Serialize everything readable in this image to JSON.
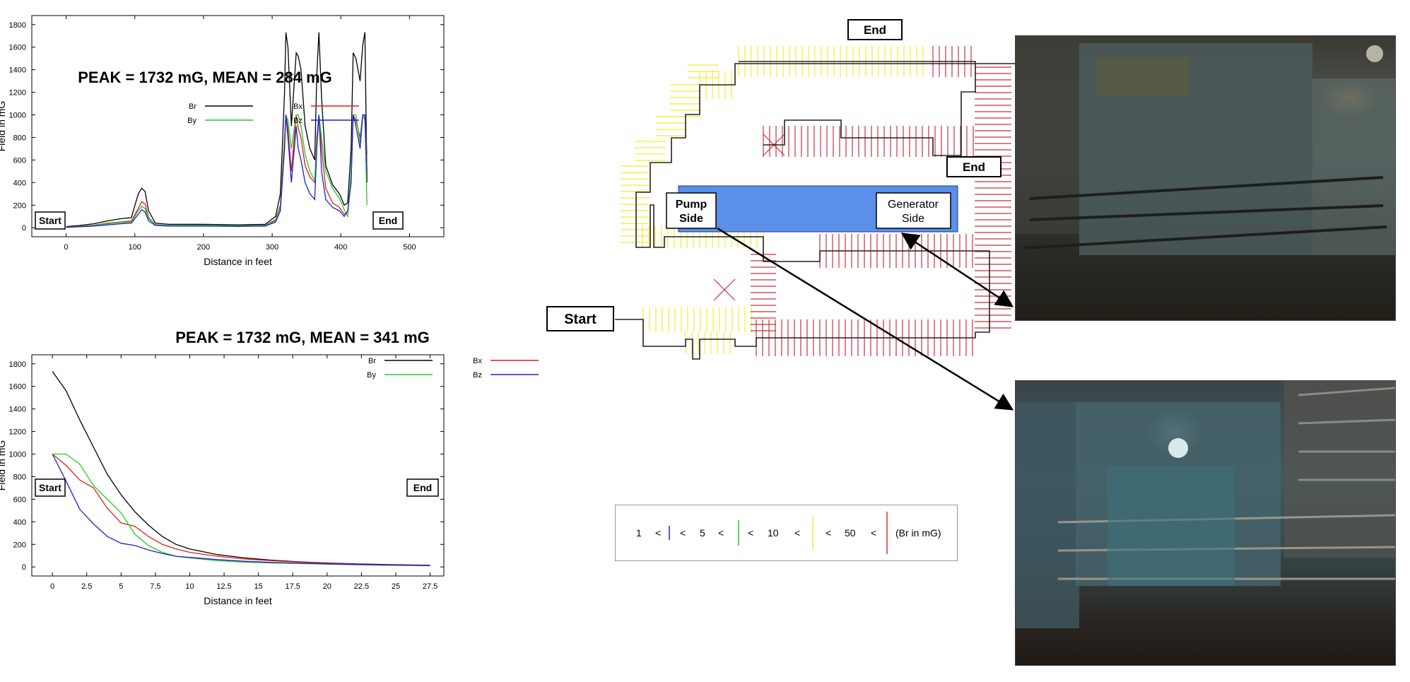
{
  "chart_data": [
    {
      "type": "line",
      "annotation": "PEAK = 1732 mG, MEAN = 284 mG",
      "xlabel": "Distance in feet",
      "ylabel": "Field in mG",
      "xlim": [
        -50,
        550
      ],
      "ylim": [
        -80,
        1880
      ],
      "xticks": [
        0,
        100,
        200,
        300,
        400,
        500
      ],
      "yticks": [
        0,
        200,
        400,
        600,
        800,
        1000,
        1200,
        1400,
        1600,
        1800
      ],
      "grid": false,
      "legend_placement": "upper-center",
      "markers": {
        "start": "Start",
        "end": "End"
      },
      "series": [
        {
          "name": "Br",
          "color": "#000000",
          "x": [
            0,
            20,
            40,
            60,
            80,
            95,
            105,
            110,
            115,
            120,
            130,
            150,
            200,
            250,
            290,
            305,
            312,
            318,
            320,
            323,
            328,
            335,
            338,
            342,
            348,
            355,
            362,
            365,
            368,
            372,
            378,
            388,
            398,
            405,
            410,
            415,
            418,
            422,
            428,
            432,
            435,
            438
          ],
          "y": [
            10,
            20,
            35,
            60,
            80,
            90,
            300,
            350,
            320,
            150,
            40,
            30,
            30,
            25,
            30,
            100,
            300,
            1200,
            1730,
            1600,
            900,
            1550,
            1520,
            1400,
            900,
            700,
            600,
            1350,
            1732,
            1150,
            550,
            380,
            300,
            200,
            220,
            700,
            1550,
            1500,
            1300,
            1620,
            1732,
            400
          ]
        },
        {
          "name": "Bx",
          "color": "#dd2020",
          "x": [
            0,
            20,
            40,
            60,
            80,
            95,
            105,
            110,
            115,
            120,
            130,
            150,
            200,
            250,
            290,
            305,
            312,
            318,
            320,
            323,
            328,
            335,
            338,
            342,
            348,
            355,
            362,
            365,
            368,
            372,
            378,
            388,
            398,
            405,
            410,
            415,
            418,
            422,
            428,
            432,
            435,
            438
          ],
          "y": [
            5,
            12,
            22,
            40,
            50,
            60,
            170,
            230,
            210,
            90,
            28,
            20,
            20,
            18,
            22,
            70,
            200,
            800,
            1000,
            880,
            500,
            1000,
            880,
            800,
            550,
            450,
            400,
            800,
            1000,
            700,
            350,
            220,
            180,
            120,
            140,
            450,
            1000,
            950,
            800,
            1000,
            1000,
            650
          ]
        },
        {
          "name": "By",
          "color": "#22cc22",
          "x": [
            0,
            20,
            40,
            60,
            80,
            95,
            105,
            110,
            115,
            120,
            130,
            150,
            200,
            250,
            290,
            305,
            312,
            318,
            320,
            323,
            328,
            335,
            338,
            342,
            348,
            355,
            362,
            365,
            368,
            372,
            378,
            388,
            398,
            405,
            410,
            415,
            418,
            422,
            428,
            432,
            435,
            438
          ],
          "y": [
            5,
            10,
            20,
            35,
            45,
            50,
            150,
            190,
            170,
            80,
            25,
            20,
            22,
            18,
            20,
            60,
            180,
            750,
            1000,
            950,
            700,
            1000,
            1000,
            900,
            650,
            500,
            420,
            750,
            1000,
            800,
            500,
            350,
            260,
            160,
            100,
            500,
            1000,
            1000,
            750,
            1000,
            950,
            200
          ]
        },
        {
          "name": "Bz",
          "color": "#2020cc",
          "x": [
            0,
            20,
            40,
            60,
            80,
            95,
            105,
            110,
            115,
            120,
            130,
            150,
            200,
            250,
            290,
            305,
            312,
            318,
            320,
            323,
            328,
            335,
            338,
            342,
            348,
            355,
            362,
            365,
            368,
            372,
            378,
            388,
            398,
            405,
            410,
            415,
            418,
            422,
            428,
            432,
            435,
            438
          ],
          "y": [
            4,
            8,
            15,
            25,
            35,
            40,
            120,
            160,
            140,
            60,
            20,
            15,
            15,
            12,
            15,
            50,
            150,
            700,
            1000,
            800,
            400,
            900,
            700,
            600,
            400,
            300,
            250,
            700,
            1000,
            500,
            250,
            180,
            150,
            100,
            150,
            400,
            1000,
            900,
            700,
            1000,
            1000,
            500
          ]
        }
      ]
    },
    {
      "type": "line",
      "annotation": "PEAK = 1732 mG, MEAN = 341 mG",
      "xlabel": "Distance in feet",
      "ylabel": "Field in mG",
      "xlim": [
        -1.5,
        28.5
      ],
      "ylim": [
        -80,
        1880
      ],
      "xticks": [
        0,
        2.5,
        5,
        7.5,
        10,
        12.5,
        15,
        17.5,
        20,
        22.5,
        25,
        27.5
      ],
      "yticks": [
        0,
        200,
        400,
        600,
        800,
        1000,
        1200,
        1400,
        1600,
        1800
      ],
      "grid": false,
      "legend_placement": "upper-right",
      "markers": {
        "start": "Start",
        "end": "End"
      },
      "series": [
        {
          "name": "Br",
          "color": "#000000",
          "x": [
            0,
            1,
            2,
            3,
            4,
            5,
            6,
            7,
            8,
            9,
            10,
            12,
            14,
            16,
            18,
            20,
            22,
            24,
            26,
            27.5
          ],
          "y": [
            1732,
            1560,
            1300,
            1060,
            820,
            640,
            490,
            370,
            270,
            200,
            160,
            110,
            80,
            60,
            45,
            35,
            28,
            22,
            18,
            15
          ]
        },
        {
          "name": "Bx",
          "color": "#dd2020",
          "x": [
            0,
            1,
            2,
            3,
            4,
            5,
            6,
            7,
            8,
            9,
            10,
            12,
            14,
            16,
            18,
            20,
            22,
            24,
            26,
            27.5
          ],
          "y": [
            1000,
            900,
            770,
            700,
            520,
            390,
            360,
            270,
            200,
            160,
            130,
            95,
            70,
            55,
            42,
            33,
            26,
            20,
            16,
            14
          ]
        },
        {
          "name": "By",
          "color": "#22cc22",
          "x": [
            0,
            1,
            2,
            3,
            4,
            5,
            6,
            7,
            8,
            9,
            10,
            12,
            14,
            16,
            18,
            20,
            22,
            24,
            26,
            27.5
          ],
          "y": [
            1000,
            1000,
            910,
            720,
            600,
            480,
            290,
            190,
            130,
            95,
            80,
            55,
            42,
            35,
            30,
            25,
            20,
            16,
            13,
            11
          ]
        },
        {
          "name": "Bz",
          "color": "#2020cc",
          "x": [
            0,
            1,
            2,
            3,
            4,
            5,
            6,
            7,
            8,
            9,
            10,
            12,
            14,
            16,
            18,
            20,
            22,
            24,
            26,
            27.5
          ],
          "y": [
            1000,
            760,
            510,
            380,
            270,
            210,
            190,
            150,
            120,
            95,
            85,
            65,
            50,
            40,
            33,
            28,
            22,
            18,
            15,
            13
          ]
        }
      ]
    }
  ],
  "diagram": {
    "labels": {
      "end_top": "End",
      "end_right": "End",
      "start": "Start",
      "pump_side_line1": "Pump",
      "pump_side_line2": "Side",
      "generator_side_line1": "Generator",
      "generator_side_line2": "Side"
    },
    "colors": {
      "pump": "#5b8fe8",
      "low_field": "#f2ec30",
      "high_field": "#c8323c",
      "mid_field": "#22cc22",
      "very_low_field": "#2020cc"
    }
  },
  "legend": {
    "v1": "1",
    "lt1": "<",
    "lt2": "<",
    "v5": "5",
    "lt3": "<",
    "lt4": "<",
    "v10": "10",
    "lt5": "<",
    "lt6": "<",
    "v50": "50",
    "lt7": "<",
    "unit": "(Br in mG)"
  },
  "photos": [
    {
      "subject": "generator-photo"
    },
    {
      "subject": "pump-photo"
    }
  ]
}
